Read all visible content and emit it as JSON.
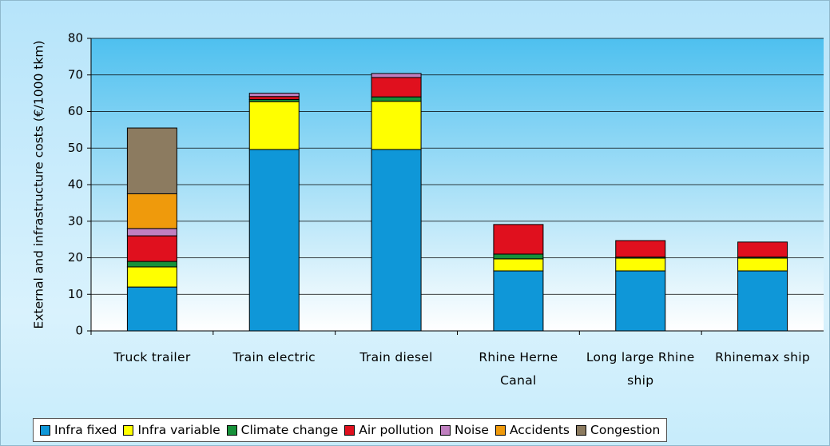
{
  "chart_data": {
    "type": "stacked-bar",
    "y_label": "External and infrastructure costs (€/1000 tkm)",
    "categories": [
      "Truck trailer",
      "Train electric",
      "Train diesel",
      "Rhine Herne Canal",
      "Long large Rhine ship",
      "Rhinemax ship"
    ],
    "series": [
      {
        "name": "Infra fixed",
        "color": "#0f97d8",
        "values": [
          12,
          49.6,
          49.6,
          16.4,
          16.4,
          16.4
        ]
      },
      {
        "name": "Infra variable",
        "color": "#ffff00",
        "values": [
          5.5,
          13.1,
          13.2,
          3.3,
          3.5,
          3.5
        ]
      },
      {
        "name": "Climate change",
        "color": "#16913a",
        "values": [
          1.5,
          0.6,
          1.2,
          1.3,
          0.3,
          0.3
        ]
      },
      {
        "name": "Air pollution",
        "color": "#e0101e",
        "values": [
          7,
          0.8,
          5.3,
          8.1,
          4.5,
          4.1
        ]
      },
      {
        "name": "Noise",
        "color": "#c080c0",
        "values": [
          2,
          0.9,
          1.1,
          0,
          0,
          0
        ]
      },
      {
        "name": "Accidents",
        "color": "#ef9a0c",
        "values": [
          9.5,
          0,
          0,
          0,
          0,
          0
        ]
      },
      {
        "name": "Congestion",
        "color": "#8c7b60",
        "values": [
          18,
          0,
          0,
          0,
          0,
          0
        ]
      }
    ],
    "ylim": [
      0,
      80
    ],
    "yticks": [
      0,
      10,
      20,
      30,
      40,
      50,
      60,
      70,
      80
    ],
    "grid": true
  }
}
